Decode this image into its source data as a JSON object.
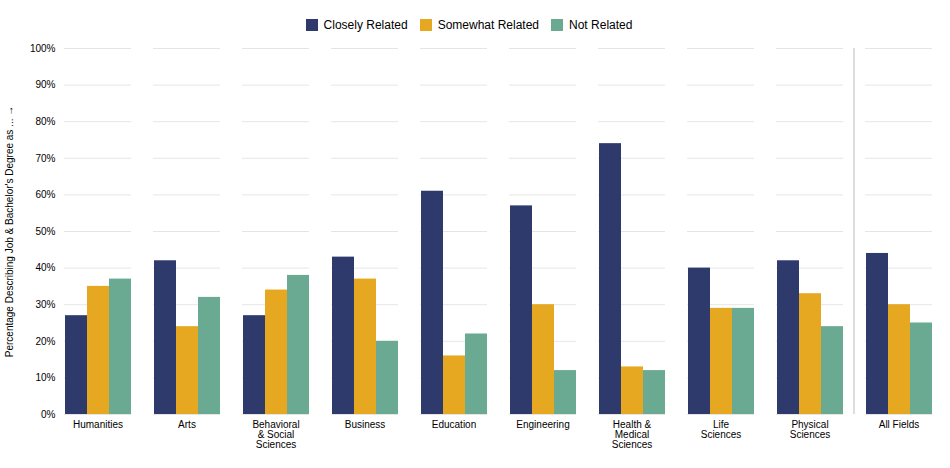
{
  "chart_data": {
    "type": "bar",
    "categories": [
      "Humanities",
      "Arts",
      "Behavioral\n& Social\nSciences",
      "Business",
      "Education",
      "Engineering",
      "Health &\nMedical\nSciences",
      "Life\nSciences",
      "Physical\nSciences",
      "All Fields"
    ],
    "series": [
      {
        "name": "Closely Related",
        "color": "#2d3a6b",
        "values": [
          27,
          42,
          27,
          43,
          61,
          57,
          74,
          40,
          42,
          44
        ]
      },
      {
        "name": "Somewhat Related",
        "color": "#e5a820",
        "values": [
          35,
          24,
          34,
          37,
          16,
          30,
          13,
          29,
          33,
          30
        ]
      },
      {
        "name": "Not Related",
        "color": "#6aaa92",
        "values": [
          37,
          32,
          38,
          20,
          22,
          12,
          12,
          29,
          24,
          25
        ]
      }
    ],
    "ylabel": "Percentage Describing Job & Bachelor's Degree as ...",
    "ylim": [
      0,
      100
    ],
    "yticks": [
      {
        "value": 0,
        "label": "0%"
      },
      {
        "value": 10,
        "label": "10%"
      },
      {
        "value": 20,
        "label": "20%"
      },
      {
        "value": 30,
        "label": "30%"
      },
      {
        "value": 40,
        "label": "40%"
      },
      {
        "value": 50,
        "label": "50%"
      },
      {
        "value": 60,
        "label": "60%"
      },
      {
        "value": 70,
        "label": "70%"
      },
      {
        "value": 80,
        "label": "80%"
      },
      {
        "value": 90,
        "label": "90%"
      },
      {
        "value": 100,
        "label": "100%"
      }
    ],
    "grid": true,
    "legend": "top"
  }
}
